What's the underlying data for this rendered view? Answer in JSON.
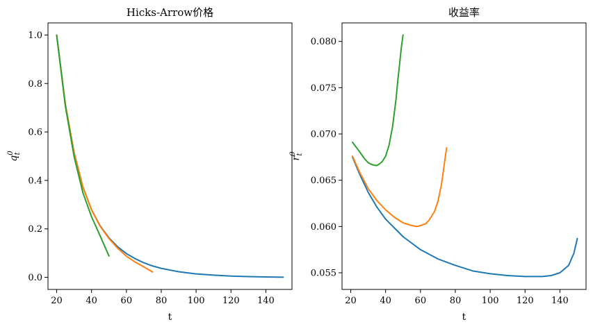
{
  "chart_data": [
    {
      "type": "line",
      "title": "Hicks-Arrow价格",
      "xlabel": "t",
      "ylabel": "q_t^0",
      "xlim": [
        15,
        155
      ],
      "ylim": [
        -0.05,
        1.05
      ],
      "xticks": [
        20,
        40,
        60,
        80,
        100,
        120,
        140
      ],
      "yticks": [
        0.0,
        0.2,
        0.4,
        0.6,
        0.8,
        1.0
      ],
      "xtick_labels": [
        "20",
        "40",
        "60",
        "80",
        "100",
        "120",
        "140"
      ],
      "ytick_labels": [
        "0.0",
        "0.2",
        "0.4",
        "0.6",
        "0.8",
        "1.0"
      ],
      "grid": false,
      "series": [
        {
          "color": "#1f77b4",
          "x": [
            20,
            25,
            30,
            35,
            40,
            45,
            50,
            55,
            60,
            65,
            70,
            75,
            80,
            90,
            100,
            110,
            120,
            130,
            140,
            150
          ],
          "values": [
            1.0,
            0.714,
            0.515,
            0.374,
            0.279,
            0.212,
            0.163,
            0.126,
            0.098,
            0.077,
            0.06,
            0.047,
            0.037,
            0.023,
            0.014,
            0.009,
            0.005,
            0.003,
            0.0015,
            0.0005
          ]
        },
        {
          "color": "#ff7f0e",
          "x": [
            20,
            25,
            30,
            35,
            40,
            45,
            50,
            55,
            60,
            65,
            70,
            75
          ],
          "values": [
            1.0,
            0.713,
            0.514,
            0.373,
            0.278,
            0.21,
            0.16,
            0.12,
            0.087,
            0.063,
            0.043,
            0.022
          ]
        },
        {
          "color": "#2ca02c",
          "x": [
            20,
            25,
            30,
            35,
            40,
            45,
            50
          ],
          "values": [
            1.0,
            0.705,
            0.498,
            0.35,
            0.25,
            0.17,
            0.088
          ]
        }
      ]
    },
    {
      "type": "line",
      "title": "收益率",
      "xlabel": "t",
      "ylabel": "r_t^0",
      "xlim": [
        15,
        155
      ],
      "ylim": [
        0.0532,
        0.082
      ],
      "xticks": [
        20,
        40,
        60,
        80,
        100,
        120,
        140
      ],
      "yticks": [
        0.055,
        0.06,
        0.065,
        0.07,
        0.075,
        0.08
      ],
      "xtick_labels": [
        "20",
        "40",
        "60",
        "80",
        "100",
        "120",
        "140"
      ],
      "ytick_labels": [
        "0.055",
        "0.060",
        "0.065",
        "0.070",
        "0.075",
        "0.080"
      ],
      "grid": false,
      "series": [
        {
          "color": "#1f77b4",
          "x": [
            21,
            25,
            30,
            35,
            40,
            50,
            60,
            70,
            80,
            90,
            100,
            110,
            120,
            125,
            130,
            135,
            140,
            145,
            148,
            150
          ],
          "values": [
            0.0675,
            0.0657,
            0.0637,
            0.0621,
            0.0608,
            0.0589,
            0.0575,
            0.0565,
            0.0558,
            0.0552,
            0.0549,
            0.0547,
            0.0546,
            0.0546,
            0.0546,
            0.0547,
            0.055,
            0.0558,
            0.0571,
            0.0587
          ]
        },
        {
          "color": "#ff7f0e",
          "x": [
            21,
            25,
            30,
            35,
            40,
            45,
            50,
            55,
            58,
            60,
            63,
            65,
            68,
            70,
            72,
            73,
            74,
            75
          ],
          "values": [
            0.0676,
            0.0659,
            0.0641,
            0.0628,
            0.0618,
            0.061,
            0.0604,
            0.0601,
            0.06,
            0.0601,
            0.0603,
            0.0607,
            0.0616,
            0.0627,
            0.0645,
            0.0658,
            0.0672,
            0.0685
          ]
        },
        {
          "color": "#2ca02c",
          "x": [
            21,
            25,
            28,
            30,
            32,
            34,
            35,
            36,
            38,
            40,
            42,
            44,
            46,
            47,
            48,
            49,
            50
          ],
          "values": [
            0.0691,
            0.0681,
            0.0673,
            0.0669,
            0.0667,
            0.0666,
            0.0666,
            0.0667,
            0.067,
            0.0676,
            0.0688,
            0.0708,
            0.0738,
            0.0758,
            0.0775,
            0.0793,
            0.0807
          ]
        }
      ]
    }
  ]
}
